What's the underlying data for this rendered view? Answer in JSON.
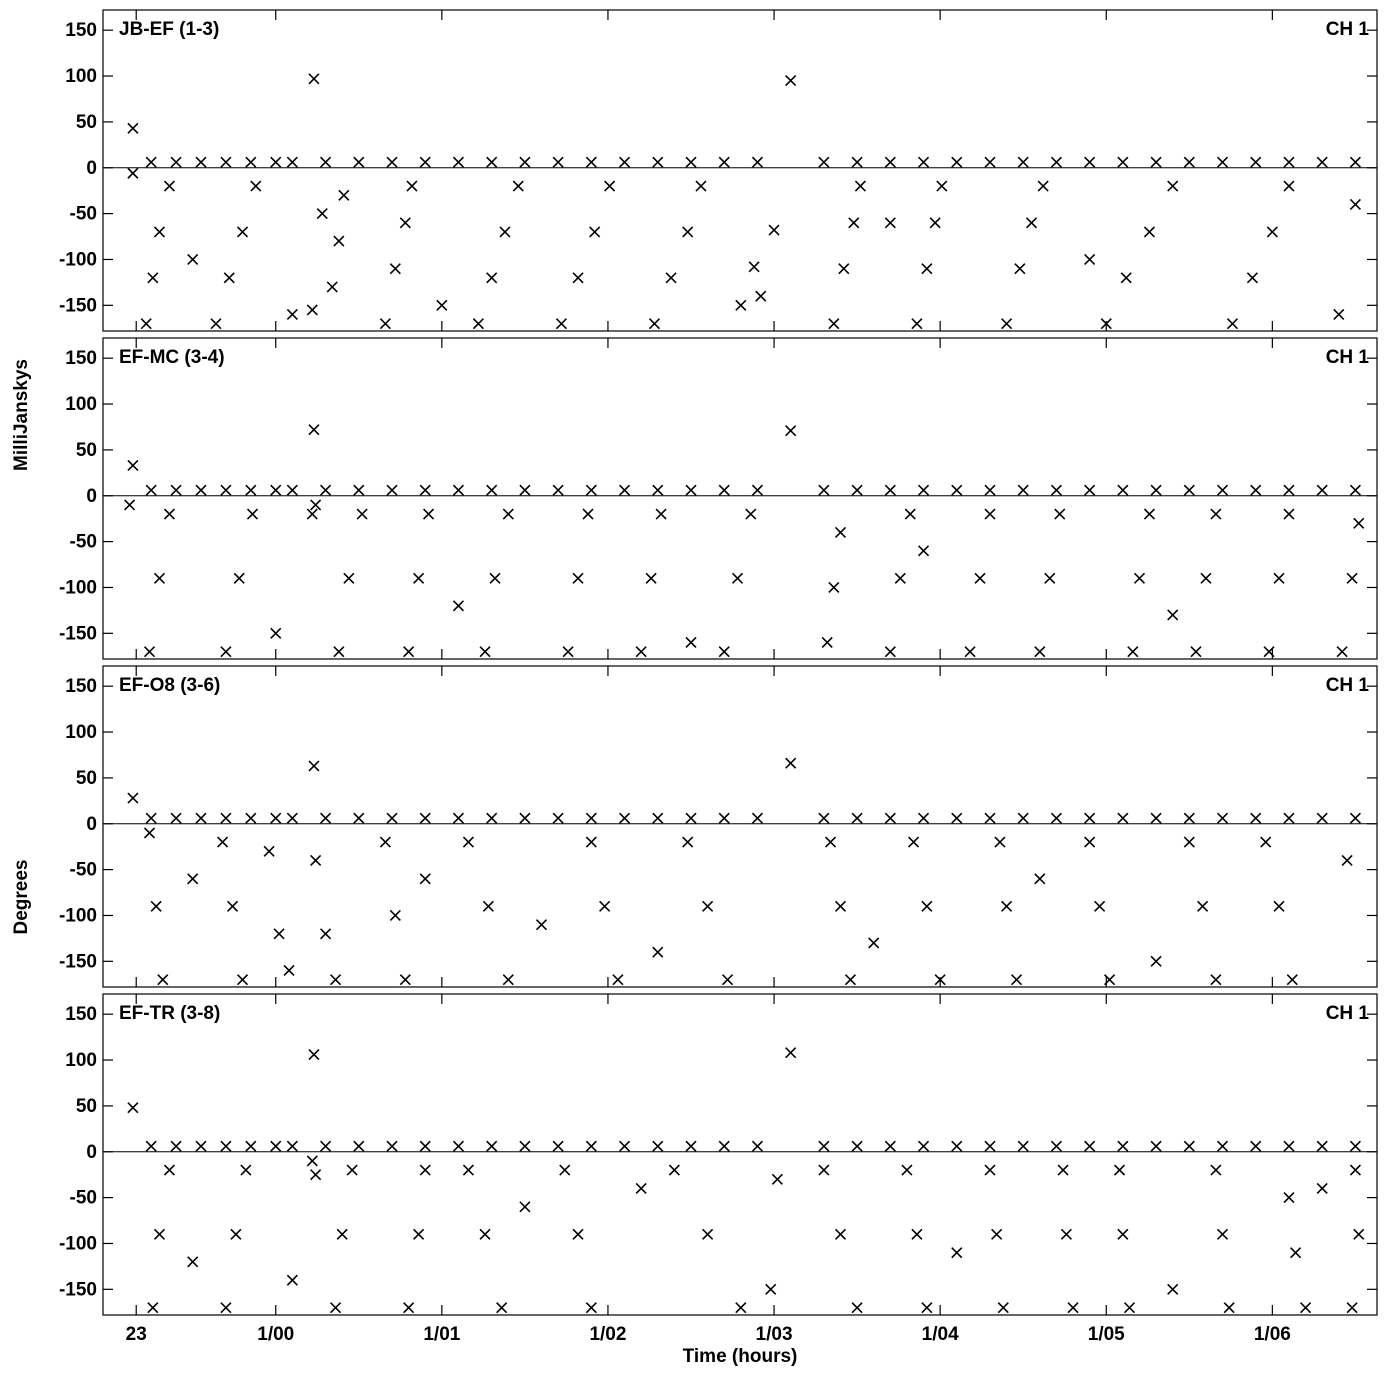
{
  "axis_labels": {
    "y_top": "MilliJanskys",
    "y_bottom": "Degrees",
    "x": "Time (hours)"
  },
  "chart_data": [
    {
      "type": "scatter",
      "title": "JB-EF (1-3)",
      "channel": "CH 1",
      "xlim": [
        22.96,
        30.63
      ],
      "ylim": [
        -178,
        172
      ],
      "xticks": [
        {
          "value": 23.16,
          "label": "23"
        },
        {
          "value": 24,
          "label": "1/00"
        },
        {
          "value": 25,
          "label": "1/01"
        },
        {
          "value": 26,
          "label": "1/02"
        },
        {
          "value": 27,
          "label": "1/03"
        },
        {
          "value": 28,
          "label": "1/04"
        },
        {
          "value": 29,
          "label": "1/05"
        },
        {
          "value": 30,
          "label": "1/06"
        }
      ],
      "yticks": [
        150,
        100,
        50,
        0,
        -50,
        -100,
        -150
      ],
      "series": [
        {
          "color": "#000000",
          "x": [
            23.14,
            23.25,
            23.4,
            23.55,
            23.7,
            23.85,
            24.0,
            24.1,
            24.23,
            24.3,
            24.5,
            24.7,
            24.9,
            25.1,
            25.3,
            25.5,
            25.7,
            25.9,
            26.1,
            26.3,
            26.5,
            26.7,
            26.9,
            27.1,
            27.3,
            27.5,
            27.7,
            27.9,
            28.1,
            28.3,
            28.5,
            28.7,
            28.9,
            29.1,
            29.3,
            29.5,
            29.7,
            29.9,
            30.1,
            30.3,
            30.5
          ],
          "values": [
            43,
            6,
            6,
            6,
            6,
            6,
            6,
            6,
            97,
            6,
            6,
            6,
            6,
            6,
            6,
            6,
            6,
            6,
            6,
            6,
            6,
            6,
            6,
            95,
            6,
            6,
            6,
            6,
            6,
            6,
            6,
            6,
            6,
            6,
            6,
            6,
            6,
            6,
            6,
            6,
            6
          ]
        },
        {
          "color": "#000000",
          "x": [
            23.22,
            23.26,
            23.3,
            23.36,
            23.64,
            23.72,
            23.8,
            23.88,
            24.34,
            24.38,
            24.41,
            24.66,
            24.72,
            24.78,
            24.82,
            25.22,
            25.3,
            25.38,
            25.46,
            25.72,
            25.82,
            25.92,
            26.01,
            26.28,
            26.38,
            26.48,
            26.56,
            27.36,
            27.42,
            27.48,
            27.52,
            27.86,
            27.92,
            27.97,
            28.01,
            28.4,
            28.48,
            28.55,
            28.62,
            29.0,
            29.12,
            29.26,
            29.4,
            29.76,
            29.88,
            30.0,
            30.1,
            23.5,
            24.1,
            25.0,
            26.8,
            27.7,
            28.9,
            30.4,
            30.5,
            23.14,
            24.22,
            24.28,
            27.0,
            26.92,
            26.88
          ],
          "values": [
            -170,
            -120,
            -70,
            -20,
            -170,
            -120,
            -70,
            -20,
            -130,
            -80,
            -30,
            -170,
            -110,
            -60,
            -20,
            -170,
            -120,
            -70,
            -20,
            -170,
            -120,
            -70,
            -20,
            -170,
            -120,
            -70,
            -20,
            -170,
            -110,
            -60,
            -20,
            -170,
            -110,
            -60,
            -20,
            -170,
            -110,
            -60,
            -20,
            -170,
            -120,
            -70,
            -20,
            -170,
            -120,
            -70,
            -20,
            -100,
            -160,
            -150,
            -150,
            -60,
            -100,
            -160,
            -40,
            -6,
            -155,
            -50,
            -68,
            -140,
            -108
          ]
        }
      ]
    },
    {
      "type": "scatter",
      "title": "EF-MC (3-4)",
      "channel": "CH 1",
      "xlim": [
        22.96,
        30.63
      ],
      "ylim": [
        -178,
        172
      ],
      "xticks": [
        {
          "value": 23.16,
          "label": "23"
        },
        {
          "value": 24,
          "label": "1/00"
        },
        {
          "value": 25,
          "label": "1/01"
        },
        {
          "value": 26,
          "label": "1/02"
        },
        {
          "value": 27,
          "label": "1/03"
        },
        {
          "value": 28,
          "label": "1/04"
        },
        {
          "value": 29,
          "label": "1/05"
        },
        {
          "value": 30,
          "label": "1/06"
        }
      ],
      "yticks": [
        150,
        100,
        50,
        0,
        -50,
        -100,
        -150
      ],
      "series": [
        {
          "color": "#000000",
          "x": [
            23.14,
            23.25,
            23.4,
            23.55,
            23.7,
            23.85,
            24.0,
            24.1,
            24.23,
            24.3,
            24.5,
            24.7,
            24.9,
            25.1,
            25.3,
            25.5,
            25.7,
            25.9,
            26.1,
            26.3,
            26.5,
            26.7,
            26.9,
            27.1,
            27.3,
            27.5,
            27.7,
            27.9,
            28.1,
            28.3,
            28.5,
            28.7,
            28.9,
            29.1,
            29.3,
            29.5,
            29.7,
            29.9,
            30.1,
            30.3,
            30.5
          ],
          "values": [
            33,
            6,
            6,
            6,
            6,
            6,
            6,
            6,
            72,
            6,
            6,
            6,
            6,
            6,
            6,
            6,
            6,
            6,
            6,
            6,
            6,
            6,
            6,
            71,
            6,
            6,
            6,
            6,
            6,
            6,
            6,
            6,
            6,
            6,
            6,
            6,
            6,
            6,
            6,
            6,
            6
          ]
        },
        {
          "color": "#000000",
          "x": [
            23.24,
            23.3,
            23.36,
            23.7,
            23.78,
            23.86,
            24.22,
            24.24,
            24.38,
            24.44,
            24.52,
            24.8,
            24.86,
            24.92,
            25.26,
            25.32,
            25.4,
            25.76,
            25.82,
            25.88,
            26.2,
            26.26,
            26.32,
            26.7,
            26.78,
            26.86,
            27.32,
            27.36,
            27.4,
            27.7,
            27.76,
            27.82,
            28.18,
            28.24,
            28.3,
            28.6,
            28.66,
            28.72,
            29.16,
            29.2,
            29.26,
            29.54,
            29.6,
            29.66,
            29.98,
            30.04,
            30.1,
            30.42,
            30.48,
            30.52,
            23.12,
            24.0,
            25.1,
            26.5,
            27.9,
            29.4
          ],
          "values": [
            -170,
            -90,
            -20,
            -170,
            -90,
            -20,
            -20,
            -10,
            -170,
            -90,
            -20,
            -170,
            -90,
            -20,
            -170,
            -90,
            -20,
            -170,
            -90,
            -20,
            -170,
            -90,
            -20,
            -170,
            -90,
            -20,
            -160,
            -100,
            -40,
            -170,
            -90,
            -20,
            -170,
            -90,
            -20,
            -170,
            -90,
            -20,
            -170,
            -90,
            -20,
            -170,
            -90,
            -20,
            -170,
            -90,
            -20,
            -170,
            -90,
            -30,
            -10,
            -150,
            -120,
            -160,
            -60,
            -130
          ]
        }
      ]
    },
    {
      "type": "scatter",
      "title": "EF-O8 (3-6)",
      "channel": "CH 1",
      "xlim": [
        22.96,
        30.63
      ],
      "ylim": [
        -178,
        172
      ],
      "xticks": [
        {
          "value": 23.16,
          "label": "23"
        },
        {
          "value": 24,
          "label": "1/00"
        },
        {
          "value": 25,
          "label": "1/01"
        },
        {
          "value": 26,
          "label": "1/02"
        },
        {
          "value": 27,
          "label": "1/03"
        },
        {
          "value": 28,
          "label": "1/04"
        },
        {
          "value": 29,
          "label": "1/05"
        },
        {
          "value": 30,
          "label": "1/06"
        }
      ],
      "yticks": [
        150,
        100,
        50,
        0,
        -50,
        -100,
        -150
      ],
      "series": [
        {
          "color": "#000000",
          "x": [
            23.14,
            23.25,
            23.4,
            23.55,
            23.7,
            23.85,
            24.0,
            24.1,
            24.23,
            24.3,
            24.5,
            24.7,
            24.9,
            25.1,
            25.3,
            25.5,
            25.7,
            25.9,
            26.1,
            26.3,
            26.5,
            26.7,
            26.9,
            27.1,
            27.3,
            27.5,
            27.7,
            27.9,
            28.1,
            28.3,
            28.5,
            28.7,
            28.9,
            29.1,
            29.3,
            29.5,
            29.7,
            29.9,
            30.1,
            30.3,
            30.5
          ],
          "values": [
            28,
            6,
            6,
            6,
            6,
            6,
            6,
            6,
            63,
            6,
            6,
            6,
            6,
            6,
            6,
            6,
            6,
            6,
            6,
            6,
            6,
            6,
            6,
            66,
            6,
            6,
            6,
            6,
            6,
            6,
            6,
            6,
            6,
            6,
            6,
            6,
            6,
            6,
            6,
            6,
            6
          ]
        },
        {
          "color": "#000000",
          "x": [
            23.24,
            23.28,
            23.32,
            23.68,
            23.74,
            23.8,
            23.96,
            24.02,
            24.08,
            24.24,
            24.3,
            24.36,
            24.66,
            24.72,
            24.78,
            25.16,
            25.28,
            25.4,
            25.9,
            25.98,
            26.06,
            26.48,
            26.6,
            26.72,
            27.34,
            27.4,
            27.46,
            27.84,
            27.92,
            28.0,
            28.36,
            28.4,
            28.46,
            28.9,
            28.96,
            29.02,
            29.5,
            29.58,
            29.66,
            29.96,
            30.04,
            30.12,
            23.5,
            24.9,
            25.6,
            26.3,
            27.6,
            28.6,
            29.3,
            30.45
          ],
          "values": [
            -10,
            -90,
            -170,
            -20,
            -90,
            -170,
            -30,
            -120,
            -160,
            -40,
            -120,
            -170,
            -20,
            -100,
            -170,
            -20,
            -90,
            -170,
            -20,
            -90,
            -170,
            -20,
            -90,
            -170,
            -20,
            -90,
            -170,
            -20,
            -90,
            -170,
            -20,
            -90,
            -170,
            -20,
            -90,
            -170,
            -20,
            -90,
            -170,
            -20,
            -90,
            -170,
            -60,
            -60,
            -110,
            -140,
            -130,
            -60,
            -150,
            -40
          ]
        }
      ]
    },
    {
      "type": "scatter",
      "title": "EF-TR (3-8)",
      "channel": "CH 1",
      "xlim": [
        22.96,
        30.63
      ],
      "ylim": [
        -178,
        172
      ],
      "xticks": [
        {
          "value": 23.16,
          "label": "23"
        },
        {
          "value": 24,
          "label": "1/00"
        },
        {
          "value": 25,
          "label": "1/01"
        },
        {
          "value": 26,
          "label": "1/02"
        },
        {
          "value": 27,
          "label": "1/03"
        },
        {
          "value": 28,
          "label": "1/04"
        },
        {
          "value": 29,
          "label": "1/05"
        },
        {
          "value": 30,
          "label": "1/06"
        }
      ],
      "yticks": [
        150,
        100,
        50,
        0,
        -50,
        -100,
        -150
      ],
      "series": [
        {
          "color": "#000000",
          "x": [
            23.14,
            23.25,
            23.4,
            23.55,
            23.7,
            23.85,
            24.0,
            24.1,
            24.23,
            24.3,
            24.5,
            24.7,
            24.9,
            25.1,
            25.3,
            25.5,
            25.7,
            25.9,
            26.1,
            26.3,
            26.5,
            26.7,
            26.9,
            27.1,
            27.3,
            27.5,
            27.7,
            27.9,
            28.1,
            28.3,
            28.5,
            28.7,
            28.9,
            29.1,
            29.3,
            29.5,
            29.7,
            29.9,
            30.1,
            30.3,
            30.5
          ],
          "values": [
            48,
            6,
            6,
            6,
            6,
            6,
            6,
            6,
            106,
            6,
            6,
            6,
            6,
            6,
            6,
            6,
            6,
            6,
            6,
            6,
            6,
            6,
            6,
            108,
            6,
            6,
            6,
            6,
            6,
            6,
            6,
            6,
            6,
            6,
            6,
            6,
            6,
            6,
            6,
            6,
            6
          ]
        },
        {
          "color": "#000000",
          "x": [
            23.26,
            23.3,
            23.36,
            23.7,
            23.76,
            23.82,
            24.22,
            24.24,
            24.36,
            24.4,
            24.46,
            24.8,
            24.86,
            24.9,
            25.36,
            25.26,
            25.16,
            25.9,
            25.82,
            25.74,
            26.8,
            26.6,
            26.4,
            26.98,
            27.02,
            27.3,
            27.4,
            27.5,
            27.8,
            27.86,
            27.92,
            28.3,
            28.34,
            28.38,
            28.74,
            28.76,
            28.8,
            29.08,
            29.1,
            29.14,
            29.66,
            29.7,
            29.74,
            30.1,
            30.14,
            30.2,
            30.5,
            30.52,
            30.48,
            23.5,
            24.1,
            25.5,
            26.2,
            28.1,
            29.4,
            30.3
          ],
          "values": [
            -170,
            -90,
            -20,
            -170,
            -90,
            -20,
            -10,
            -25,
            -170,
            -90,
            -20,
            -170,
            -90,
            -20,
            -170,
            -90,
            -20,
            -170,
            -90,
            -20,
            -170,
            -90,
            -20,
            -150,
            -30,
            -20,
            -90,
            -170,
            -20,
            -90,
            -170,
            -20,
            -90,
            -170,
            -20,
            -90,
            -170,
            -20,
            -90,
            -170,
            -20,
            -90,
            -170,
            -50,
            -110,
            -170,
            -20,
            -90,
            -170,
            -120,
            -140,
            -60,
            -40,
            -110,
            -150,
            -40
          ]
        }
      ]
    }
  ]
}
